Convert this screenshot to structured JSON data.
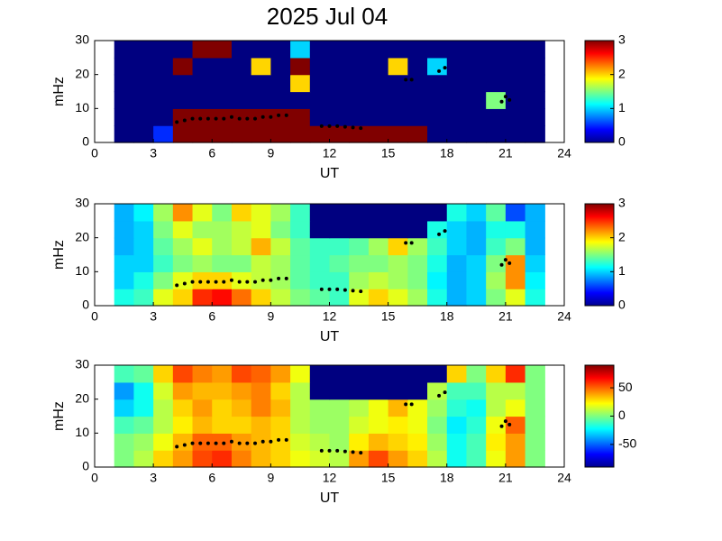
{
  "chart_data": [
    {
      "type": "heatmap",
      "title": "2025 Jul 04",
      "xlabel": "UT",
      "ylabel": "mHz",
      "xlim": [
        0,
        24
      ],
      "xticks": [
        0,
        3,
        6,
        9,
        12,
        15,
        18,
        21,
        24
      ],
      "ylim": [
        0,
        30
      ],
      "yticks": [
        0,
        10,
        20,
        30
      ],
      "clim": [
        0,
        3
      ],
      "cticks": [
        0,
        1,
        2,
        3
      ],
      "x": [
        1.5,
        2.5,
        3.5,
        4.5,
        5.5,
        6.5,
        7.5,
        8.5,
        9.5,
        10.5,
        11.5,
        12.5,
        13.5,
        14.5,
        15.5,
        16.5,
        17.5,
        18.5,
        19.5,
        20.5,
        21.5,
        22.5
      ],
      "y": [
        2.5,
        7.5,
        12.5,
        17.5,
        22.5,
        27.5
      ],
      "z": [
        [
          0,
          0,
          0.5,
          3,
          3,
          3,
          3,
          3,
          3,
          3,
          3,
          3,
          3,
          3,
          3,
          3,
          0,
          0,
          0,
          0,
          0,
          0
        ],
        [
          0,
          0,
          0,
          3,
          3,
          3,
          3,
          3,
          3,
          3,
          0,
          0,
          0,
          0,
          0,
          0,
          0,
          0,
          0,
          0,
          0,
          0
        ],
        [
          0,
          0,
          0,
          0,
          0,
          0,
          0,
          0,
          0,
          0,
          0,
          0,
          0,
          0,
          0,
          0,
          0,
          0,
          0,
          1.5,
          0,
          0
        ],
        [
          0,
          0,
          0,
          0,
          0,
          0,
          0,
          0,
          0,
          2,
          0,
          0,
          0,
          0,
          0,
          0,
          0,
          0,
          0,
          0,
          0,
          0
        ],
        [
          0,
          0,
          0,
          3,
          0,
          0,
          0,
          2,
          0,
          3,
          0,
          0,
          0,
          0,
          2,
          0,
          1,
          0,
          0,
          0,
          0,
          0
        ],
        [
          0,
          0,
          0,
          0,
          3,
          3,
          0,
          0,
          0,
          1,
          0,
          0,
          0,
          0,
          0,
          0,
          0,
          0,
          0,
          0,
          0,
          0
        ]
      ],
      "points": {
        "x": [
          4.2,
          4.6,
          5,
          5.4,
          5.8,
          6.2,
          6.6,
          7,
          7.4,
          7.8,
          8.2,
          8.6,
          9,
          9.4,
          9.8,
          11.6,
          12,
          12.4,
          12.8,
          13.2,
          13.6,
          15.9,
          16.2,
          17.6,
          17.9,
          20.8,
          21.0,
          21.2
        ],
        "y": [
          6,
          6.5,
          7,
          7,
          7,
          7,
          7,
          7.5,
          7,
          7,
          7,
          7.5,
          7.5,
          8,
          8,
          4.8,
          4.8,
          4.8,
          4.6,
          4.4,
          4.2,
          18.5,
          18.5,
          21,
          22,
          12,
          13.5,
          12.5
        ],
        "color": "#000000"
      }
    },
    {
      "type": "heatmap",
      "xlabel": "UT",
      "ylabel": "mHz",
      "xlim": [
        0,
        24
      ],
      "xticks": [
        0,
        3,
        6,
        9,
        12,
        15,
        18,
        21,
        24
      ],
      "ylim": [
        0,
        30
      ],
      "yticks": [
        0,
        10,
        20,
        30
      ],
      "clim": [
        0,
        3
      ],
      "cticks": [
        0,
        1,
        2,
        3
      ],
      "x": [
        1.5,
        2.5,
        3.5,
        4.5,
        5.5,
        6.5,
        7.5,
        8.5,
        9.5,
        10.5,
        11.5,
        12.5,
        13.5,
        14.5,
        15.5,
        16.5,
        17.5,
        18.5,
        19.5,
        20.5,
        21.5,
        22.5
      ],
      "y": [
        2.5,
        7.5,
        12.5,
        17.5,
        22.5,
        27.5
      ],
      "z": [
        [
          1.2,
          1.3,
          1.8,
          2,
          2.5,
          2.6,
          2.3,
          2,
          1.7,
          1.5,
          1.4,
          1.3,
          1.8,
          2,
          1.8,
          1.6,
          1.2,
          0.9,
          1,
          1.5,
          1.8,
          1.2
        ],
        [
          1.0,
          1.2,
          1.5,
          1.8,
          2,
          2,
          1.8,
          1.7,
          1.6,
          1.4,
          1.3,
          1.3,
          1.6,
          1.7,
          1.6,
          1.5,
          1.1,
          0.9,
          1.0,
          1.6,
          2.2,
          1.1
        ],
        [
          1.0,
          1.0,
          1.3,
          1.5,
          1.6,
          1.5,
          1.5,
          1.7,
          1.6,
          1.4,
          1.3,
          1.4,
          1.5,
          1.5,
          1.6,
          1.5,
          1.2,
          0.9,
          1.0,
          1.5,
          2.2,
          1.0
        ],
        [
          0.9,
          1.0,
          1.4,
          1.6,
          1.8,
          1.6,
          1.7,
          2.1,
          1.7,
          1.4,
          1.3,
          1.3,
          1.4,
          1.6,
          2.0,
          1.6,
          1.3,
          1.0,
          0.9,
          1.3,
          1.5,
          0.9
        ],
        [
          0.9,
          1.0,
          1.5,
          1.8,
          1.6,
          1.6,
          1.7,
          1.8,
          1.5,
          1.3,
          0,
          0,
          0,
          0,
          0,
          0,
          1.2,
          1.0,
          0.9,
          1.2,
          1.2,
          0.9
        ],
        [
          0.9,
          1.1,
          1.6,
          2.2,
          1.8,
          1.5,
          2.0,
          1.8,
          1.6,
          1.3,
          0,
          0,
          0,
          0,
          0,
          0,
          0,
          1.2,
          1.0,
          1.4,
          0.6,
          0.9
        ]
      ],
      "points": {
        "x": [
          4.2,
          4.6,
          5,
          5.4,
          5.8,
          6.2,
          6.6,
          7,
          7.4,
          7.8,
          8.2,
          8.6,
          9,
          9.4,
          9.8,
          11.6,
          12,
          12.4,
          12.8,
          13.2,
          13.6,
          15.9,
          16.2,
          17.6,
          17.9,
          20.8,
          21.0,
          21.2
        ],
        "y": [
          6,
          6.5,
          7,
          7,
          7,
          7,
          7,
          7.5,
          7,
          7,
          7,
          7.5,
          7.5,
          8,
          8,
          4.8,
          4.8,
          4.8,
          4.6,
          4.4,
          4.2,
          18.5,
          18.5,
          21,
          22,
          12,
          13.5,
          12.5
        ],
        "color": "#000000"
      }
    },
    {
      "type": "heatmap",
      "xlabel": "UT",
      "ylabel": "mHz",
      "xlim": [
        0,
        24
      ],
      "xticks": [
        0,
        3,
        6,
        9,
        12,
        15,
        18,
        21,
        24
      ],
      "ylim": [
        0,
        30
      ],
      "yticks": [
        0,
        10,
        20,
        30
      ],
      "clim": [
        -90,
        90
      ],
      "cticks": [
        -50,
        0,
        50
      ],
      "x": [
        1.5,
        2.5,
        3.5,
        4.5,
        5.5,
        6.5,
        7.5,
        8.5,
        9.5,
        10.5,
        11.5,
        12.5,
        13.5,
        14.5,
        15.5,
        16.5,
        17.5,
        18.5,
        19.5,
        20.5,
        21.5,
        22.5
      ],
      "y": [
        2.5,
        7.5,
        12.5,
        17.5,
        22.5,
        27.5
      ],
      "z": [
        [
          0,
          10,
          30,
          40,
          55,
          60,
          45,
          35,
          30,
          20,
          15,
          10,
          40,
          55,
          40,
          30,
          10,
          -20,
          -10,
          20,
          40,
          0
        ],
        [
          0,
          5,
          20,
          35,
          50,
          50,
          40,
          35,
          30,
          15,
          10,
          5,
          25,
          35,
          30,
          25,
          5,
          -20,
          -10,
          25,
          40,
          0
        ],
        [
          -10,
          -5,
          10,
          25,
          35,
          30,
          30,
          35,
          30,
          10,
          5,
          5,
          15,
          20,
          25,
          20,
          0,
          -25,
          -15,
          20,
          50,
          0
        ],
        [
          -30,
          -20,
          10,
          30,
          40,
          30,
          35,
          45,
          35,
          10,
          5,
          5,
          10,
          20,
          35,
          20,
          5,
          -15,
          -20,
          10,
          20,
          0
        ],
        [
          -40,
          -20,
          15,
          40,
          35,
          35,
          40,
          45,
          30,
          10,
          -90,
          -90,
          -90,
          -90,
          -90,
          -90,
          10,
          -10,
          -10,
          10,
          10,
          0
        ],
        [
          -10,
          -5,
          30,
          55,
          45,
          40,
          55,
          50,
          40,
          20,
          -90,
          -90,
          -90,
          -90,
          -90,
          -90,
          -90,
          30,
          0,
          30,
          60,
          0
        ]
      ],
      "points": {
        "x": [
          4.2,
          4.6,
          5,
          5.4,
          5.8,
          6.2,
          6.6,
          7,
          7.4,
          7.8,
          8.2,
          8.6,
          9,
          9.4,
          9.8,
          11.6,
          12,
          12.4,
          12.8,
          13.2,
          13.6,
          15.9,
          16.2,
          17.6,
          17.9,
          20.8,
          21.0,
          21.2
        ],
        "y": [
          6,
          6.5,
          7,
          7,
          7,
          7,
          7,
          7.5,
          7,
          7,
          7,
          7.5,
          7.5,
          8,
          8,
          4.8,
          4.8,
          4.8,
          4.6,
          4.4,
          4.2,
          18.5,
          18.5,
          21,
          22,
          12,
          13.5,
          12.5
        ],
        "color": "#000000"
      }
    }
  ]
}
